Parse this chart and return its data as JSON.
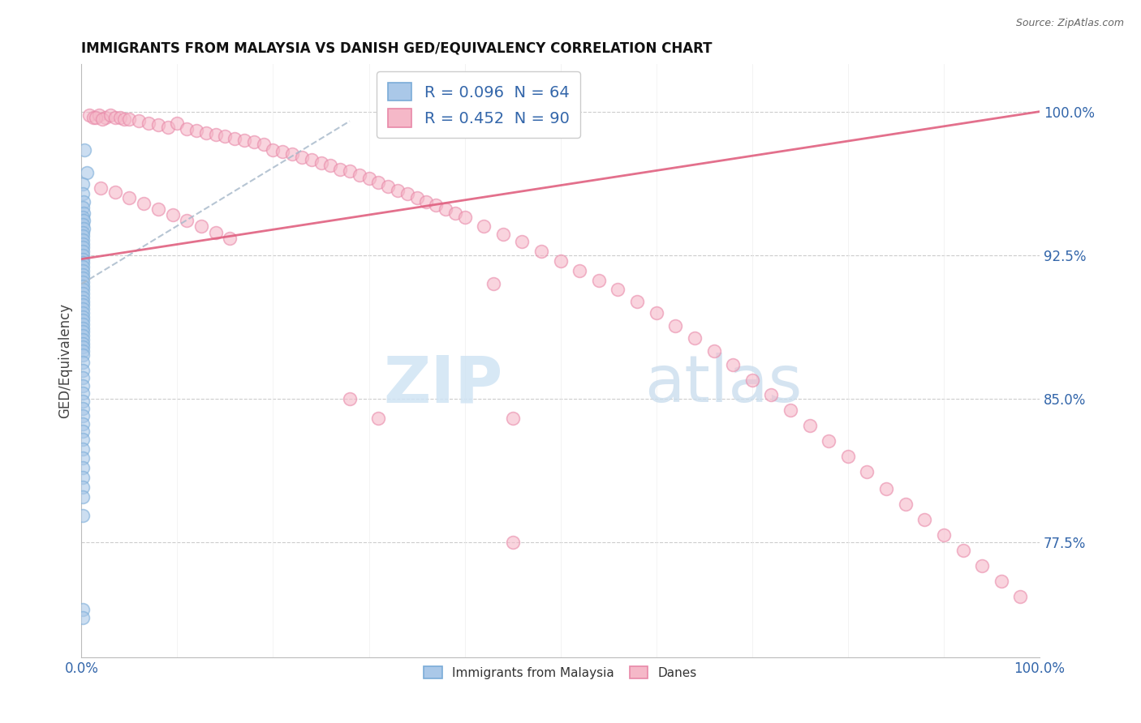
{
  "title": "IMMIGRANTS FROM MALAYSIA VS DANISH GED/EQUIVALENCY CORRELATION CHART",
  "source": "Source: ZipAtlas.com",
  "ylabel": "GED/Equivalency",
  "ytick_labels": [
    "77.5%",
    "85.0%",
    "92.5%",
    "100.0%"
  ],
  "ytick_values": [
    0.775,
    0.85,
    0.925,
    1.0
  ],
  "legend_top": [
    "R = 0.096  N = 64",
    "R = 0.452  N = 90"
  ],
  "legend_bottom": [
    "Immigrants from Malaysia",
    "Danes"
  ],
  "xlim": [
    0.0,
    1.0
  ],
  "ylim": [
    0.715,
    1.025
  ],
  "blue_scatter_x": [
    0.003,
    0.006,
    0.001,
    0.001,
    0.002,
    0.001,
    0.002,
    0.001,
    0.002,
    0.001,
    0.002,
    0.001,
    0.001,
    0.001,
    0.001,
    0.001,
    0.001,
    0.001,
    0.001,
    0.001,
    0.001,
    0.001,
    0.001,
    0.001,
    0.001,
    0.001,
    0.001,
    0.001,
    0.001,
    0.001,
    0.001,
    0.001,
    0.001,
    0.001,
    0.001,
    0.001,
    0.001,
    0.001,
    0.001,
    0.001,
    0.001,
    0.001,
    0.001,
    0.001,
    0.001,
    0.001,
    0.001,
    0.001,
    0.001,
    0.001,
    0.001,
    0.001,
    0.001,
    0.001,
    0.001,
    0.001,
    0.001,
    0.001,
    0.001,
    0.001,
    0.001,
    0.001,
    0.001,
    0.001
  ],
  "blue_scatter_y": [
    0.98,
    0.968,
    0.962,
    0.957,
    0.953,
    0.95,
    0.947,
    0.945,
    0.943,
    0.941,
    0.939,
    0.937,
    0.935,
    0.933,
    0.931,
    0.929,
    0.927,
    0.925,
    0.923,
    0.921,
    0.919,
    0.917,
    0.915,
    0.913,
    0.911,
    0.909,
    0.907,
    0.905,
    0.903,
    0.901,
    0.899,
    0.897,
    0.895,
    0.893,
    0.891,
    0.889,
    0.887,
    0.885,
    0.883,
    0.881,
    0.879,
    0.877,
    0.875,
    0.873,
    0.869,
    0.865,
    0.861,
    0.857,
    0.853,
    0.849,
    0.845,
    0.841,
    0.837,
    0.833,
    0.829,
    0.824,
    0.819,
    0.814,
    0.809,
    0.804,
    0.799,
    0.789,
    0.74,
    0.736
  ],
  "pink_scatter_x": [
    0.008,
    0.012,
    0.018,
    0.025,
    0.015,
    0.022,
    0.03,
    0.035,
    0.04,
    0.045,
    0.05,
    0.06,
    0.07,
    0.08,
    0.09,
    0.1,
    0.11,
    0.12,
    0.13,
    0.14,
    0.15,
    0.16,
    0.17,
    0.18,
    0.19,
    0.2,
    0.21,
    0.22,
    0.23,
    0.24,
    0.25,
    0.26,
    0.27,
    0.28,
    0.29,
    0.3,
    0.31,
    0.32,
    0.33,
    0.34,
    0.35,
    0.36,
    0.37,
    0.38,
    0.39,
    0.4,
    0.42,
    0.44,
    0.46,
    0.48,
    0.5,
    0.52,
    0.54,
    0.56,
    0.58,
    0.6,
    0.62,
    0.64,
    0.66,
    0.68,
    0.7,
    0.72,
    0.74,
    0.76,
    0.78,
    0.8,
    0.82,
    0.84,
    0.86,
    0.88,
    0.9,
    0.92,
    0.94,
    0.96,
    0.98,
    0.43,
    0.45,
    0.31,
    0.28,
    0.45,
    0.02,
    0.035,
    0.05,
    0.065,
    0.08,
    0.095,
    0.11,
    0.125,
    0.14,
    0.155
  ],
  "pink_scatter_y": [
    0.998,
    0.997,
    0.998,
    0.997,
    0.997,
    0.996,
    0.998,
    0.997,
    0.997,
    0.996,
    0.996,
    0.995,
    0.994,
    0.993,
    0.992,
    0.994,
    0.991,
    0.99,
    0.989,
    0.988,
    0.987,
    0.986,
    0.985,
    0.984,
    0.983,
    0.98,
    0.979,
    0.978,
    0.976,
    0.975,
    0.973,
    0.972,
    0.97,
    0.969,
    0.967,
    0.965,
    0.963,
    0.961,
    0.959,
    0.957,
    0.955,
    0.953,
    0.951,
    0.949,
    0.947,
    0.945,
    0.94,
    0.936,
    0.932,
    0.927,
    0.922,
    0.917,
    0.912,
    0.907,
    0.901,
    0.895,
    0.888,
    0.882,
    0.875,
    0.868,
    0.86,
    0.852,
    0.844,
    0.836,
    0.828,
    0.82,
    0.812,
    0.803,
    0.795,
    0.787,
    0.779,
    0.771,
    0.763,
    0.755,
    0.747,
    0.91,
    0.84,
    0.84,
    0.85,
    0.775,
    0.96,
    0.958,
    0.955,
    0.952,
    0.949,
    0.946,
    0.943,
    0.94,
    0.937,
    0.934
  ],
  "blue_line_x": [
    0.0,
    0.28
  ],
  "blue_line_y": [
    0.91,
    0.995
  ],
  "pink_line_x": [
    0.0,
    1.0
  ],
  "pink_line_y": [
    0.923,
    1.0
  ]
}
